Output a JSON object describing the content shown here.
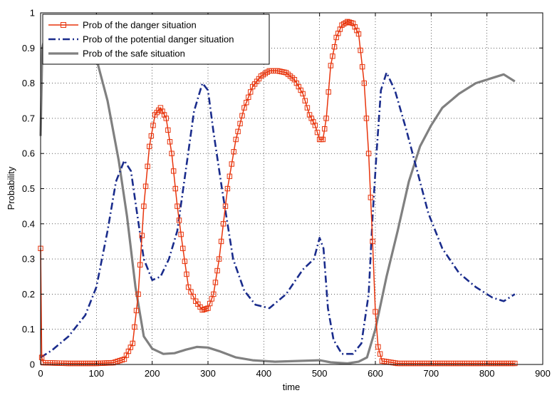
{
  "chart_data": {
    "type": "line",
    "title": "",
    "xlabel": "time",
    "ylabel": "Probability",
    "xlim": [
      0,
      900
    ],
    "ylim": [
      0,
      1
    ],
    "xticks": [
      0,
      100,
      200,
      300,
      400,
      500,
      600,
      700,
      800,
      900
    ],
    "yticks": [
      0,
      0.1,
      0.2,
      0.3,
      0.4,
      0.5,
      0.6,
      0.7,
      0.8,
      0.9,
      1
    ],
    "grid": true,
    "legend": "top-left",
    "series": [
      {
        "name": "Prob of the danger situation",
        "color": "#e8340c",
        "style": "solid-square-markers",
        "points": [
          [
            0,
            0.33
          ],
          [
            2,
            0.02
          ],
          [
            5,
            0.005
          ],
          [
            50,
            0.003
          ],
          [
            100,
            0.003
          ],
          [
            130,
            0.005
          ],
          [
            150,
            0.015
          ],
          [
            165,
            0.06
          ],
          [
            175,
            0.2
          ],
          [
            185,
            0.45
          ],
          [
            195,
            0.62
          ],
          [
            205,
            0.71
          ],
          [
            215,
            0.73
          ],
          [
            225,
            0.7
          ],
          [
            235,
            0.6
          ],
          [
            245,
            0.45
          ],
          [
            255,
            0.33
          ],
          [
            265,
            0.22
          ],
          [
            278,
            0.18
          ],
          [
            290,
            0.155
          ],
          [
            300,
            0.16
          ],
          [
            310,
            0.2
          ],
          [
            320,
            0.3
          ],
          [
            335,
            0.5
          ],
          [
            350,
            0.64
          ],
          [
            365,
            0.73
          ],
          [
            380,
            0.79
          ],
          [
            395,
            0.82
          ],
          [
            410,
            0.835
          ],
          [
            425,
            0.835
          ],
          [
            440,
            0.83
          ],
          [
            455,
            0.81
          ],
          [
            470,
            0.77
          ],
          [
            482,
            0.71
          ],
          [
            492,
            0.68
          ],
          [
            500,
            0.64
          ],
          [
            506,
            0.64
          ],
          [
            512,
            0.7
          ],
          [
            520,
            0.85
          ],
          [
            530,
            0.93
          ],
          [
            540,
            0.965
          ],
          [
            550,
            0.975
          ],
          [
            560,
            0.97
          ],
          [
            570,
            0.94
          ],
          [
            580,
            0.8
          ],
          [
            588,
            0.6
          ],
          [
            595,
            0.35
          ],
          [
            600,
            0.15
          ],
          [
            605,
            0.05
          ],
          [
            612,
            0.01
          ],
          [
            640,
            0.003
          ],
          [
            700,
            0.003
          ],
          [
            800,
            0.003
          ],
          [
            850,
            0.003
          ]
        ]
      },
      {
        "name": "Prob of the potential danger situation",
        "color": "#1a2c8c",
        "style": "dash-dot",
        "points": [
          [
            0,
            0.02
          ],
          [
            20,
            0.04
          ],
          [
            50,
            0.08
          ],
          [
            80,
            0.14
          ],
          [
            100,
            0.22
          ],
          [
            120,
            0.38
          ],
          [
            135,
            0.52
          ],
          [
            150,
            0.58
          ],
          [
            162,
            0.55
          ],
          [
            172,
            0.44
          ],
          [
            185,
            0.3
          ],
          [
            200,
            0.24
          ],
          [
            215,
            0.25
          ],
          [
            230,
            0.3
          ],
          [
            245,
            0.38
          ],
          [
            260,
            0.55
          ],
          [
            275,
            0.72
          ],
          [
            290,
            0.8
          ],
          [
            300,
            0.78
          ],
          [
            310,
            0.66
          ],
          [
            325,
            0.5
          ],
          [
            345,
            0.3
          ],
          [
            365,
            0.21
          ],
          [
            385,
            0.17
          ],
          [
            410,
            0.16
          ],
          [
            440,
            0.2
          ],
          [
            470,
            0.27
          ],
          [
            490,
            0.3
          ],
          [
            500,
            0.36
          ],
          [
            507,
            0.33
          ],
          [
            515,
            0.16
          ],
          [
            525,
            0.07
          ],
          [
            540,
            0.03
          ],
          [
            560,
            0.03
          ],
          [
            575,
            0.06
          ],
          [
            588,
            0.2
          ],
          [
            595,
            0.42
          ],
          [
            602,
            0.6
          ],
          [
            610,
            0.78
          ],
          [
            620,
            0.83
          ],
          [
            635,
            0.78
          ],
          [
            655,
            0.67
          ],
          [
            675,
            0.55
          ],
          [
            695,
            0.43
          ],
          [
            720,
            0.33
          ],
          [
            750,
            0.26
          ],
          [
            780,
            0.22
          ],
          [
            810,
            0.19
          ],
          [
            830,
            0.18
          ],
          [
            850,
            0.2
          ]
        ]
      },
      {
        "name": "Prob of the safe situation",
        "color": "#808080",
        "style": "solid",
        "points": [
          [
            0,
            0.65
          ],
          [
            3,
            0.9
          ],
          [
            10,
            0.95
          ],
          [
            60,
            0.93
          ],
          [
            100,
            0.87
          ],
          [
            120,
            0.75
          ],
          [
            140,
            0.58
          ],
          [
            155,
            0.42
          ],
          [
            170,
            0.22
          ],
          [
            185,
            0.08
          ],
          [
            200,
            0.045
          ],
          [
            220,
            0.03
          ],
          [
            240,
            0.032
          ],
          [
            260,
            0.042
          ],
          [
            280,
            0.05
          ],
          [
            300,
            0.048
          ],
          [
            320,
            0.038
          ],
          [
            350,
            0.02
          ],
          [
            380,
            0.012
          ],
          [
            420,
            0.008
          ],
          [
            460,
            0.01
          ],
          [
            500,
            0.012
          ],
          [
            520,
            0.006
          ],
          [
            550,
            0.003
          ],
          [
            570,
            0.008
          ],
          [
            585,
            0.02
          ],
          [
            600,
            0.1
          ],
          [
            620,
            0.25
          ],
          [
            640,
            0.38
          ],
          [
            660,
            0.52
          ],
          [
            680,
            0.62
          ],
          [
            700,
            0.68
          ],
          [
            720,
            0.73
          ],
          [
            750,
            0.77
          ],
          [
            780,
            0.8
          ],
          [
            810,
            0.815
          ],
          [
            830,
            0.825
          ],
          [
            850,
            0.805
          ]
        ]
      }
    ]
  }
}
